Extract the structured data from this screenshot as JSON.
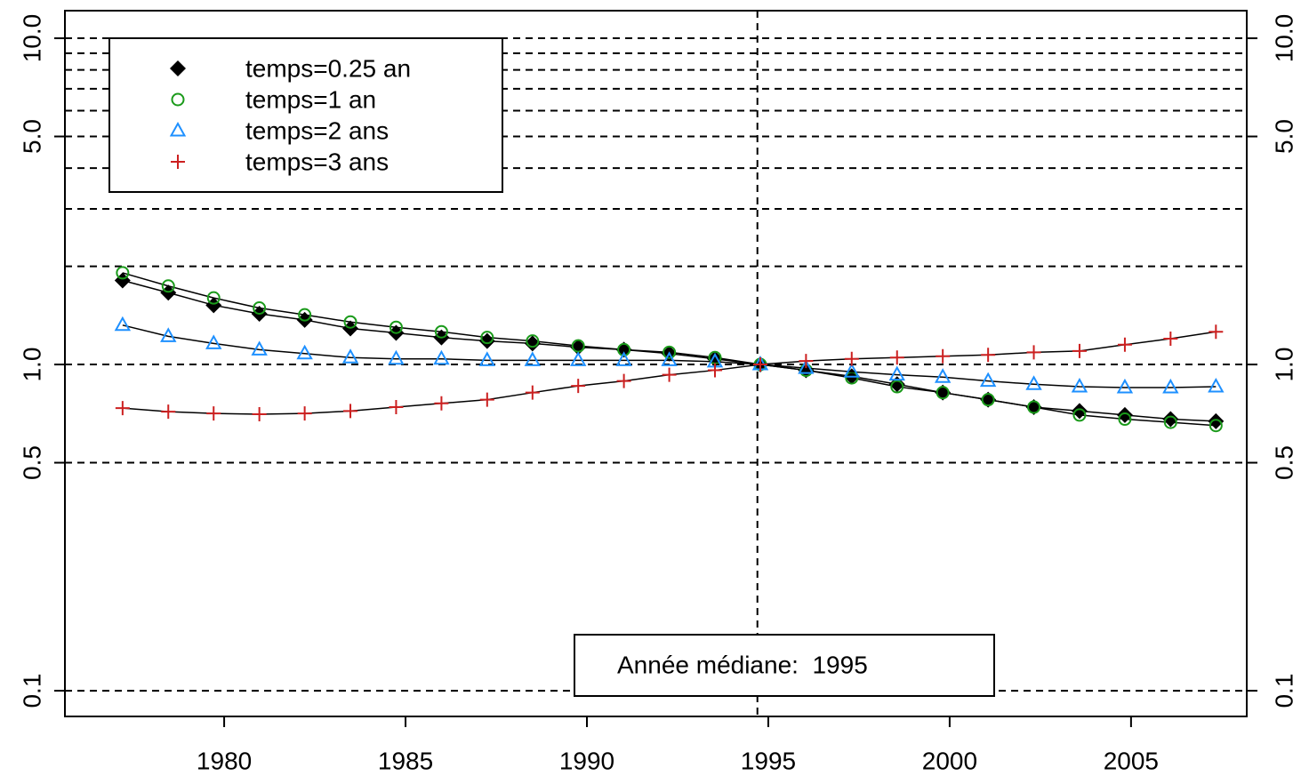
{
  "chart_data": {
    "type": "line",
    "log_y": true,
    "x": [
      1977.2,
      1978.46,
      1979.71,
      1980.97,
      1982.22,
      1983.48,
      1984.74,
      1985.99,
      1987.25,
      1988.5,
      1989.76,
      1991.02,
      1992.27,
      1993.53,
      1994.78,
      1996.04,
      1997.3,
      1998.55,
      1999.81,
      2001.06,
      2002.32,
      2003.58,
      2004.83,
      2006.09,
      2007.34
    ],
    "series": [
      {
        "name": "temps=0.25 an",
        "color": "#000000",
        "marker": "diamond",
        "values": [
          1.81,
          1.66,
          1.52,
          1.43,
          1.37,
          1.29,
          1.25,
          1.21,
          1.18,
          1.16,
          1.13,
          1.11,
          1.08,
          1.04,
          1.0,
          0.96,
          0.92,
          0.87,
          0.82,
          0.78,
          0.74,
          0.72,
          0.7,
          0.68,
          0.67
        ]
      },
      {
        "name": "temps=1 an",
        "color": "#1a9a1a",
        "marker": "circle",
        "values": [
          1.91,
          1.74,
          1.6,
          1.49,
          1.42,
          1.35,
          1.3,
          1.26,
          1.21,
          1.18,
          1.14,
          1.11,
          1.09,
          1.05,
          1.0,
          0.96,
          0.91,
          0.855,
          0.82,
          0.78,
          0.74,
          0.7,
          0.68,
          0.665,
          0.65
        ]
      },
      {
        "name": "temps=2 ans",
        "color": "#1e90ff",
        "marker": "triangle",
        "values": [
          1.32,
          1.22,
          1.16,
          1.11,
          1.08,
          1.05,
          1.04,
          1.04,
          1.03,
          1.03,
          1.03,
          1.03,
          1.03,
          1.02,
          1.0,
          0.975,
          0.95,
          0.93,
          0.915,
          0.89,
          0.87,
          0.855,
          0.85,
          0.85,
          0.855
        ]
      },
      {
        "name": "temps=3 ans",
        "color": "#cc2020",
        "marker": "plus",
        "values": [
          0.735,
          0.717,
          0.708,
          0.704,
          0.708,
          0.72,
          0.74,
          0.76,
          0.78,
          0.82,
          0.86,
          0.89,
          0.93,
          0.96,
          1.0,
          1.025,
          1.04,
          1.05,
          1.06,
          1.07,
          1.09,
          1.1,
          1.15,
          1.2,
          1.26
        ]
      }
    ],
    "xlim": [
      1975.61,
      2008.19
    ],
    "xticks": [
      1980,
      1985,
      1990,
      1995,
      2000,
      2005
    ],
    "ylim": [
      0.0834,
      12.15
    ],
    "yticks": [
      {
        "value": 0.1,
        "label": "0.1"
      },
      {
        "value": 0.5,
        "label": "0.5"
      },
      {
        "value": 1,
        "label": "1.0"
      },
      {
        "value": 5,
        "label": "5.0"
      },
      {
        "value": 10,
        "label": "10.0"
      }
    ],
    "hgrid": [
      10,
      9,
      8,
      7,
      6,
      5,
      4,
      3,
      2,
      1,
      0.5,
      0.1
    ],
    "vline": 1994.7,
    "annotation": "Année médiane:  1995",
    "legend": "top-left"
  }
}
